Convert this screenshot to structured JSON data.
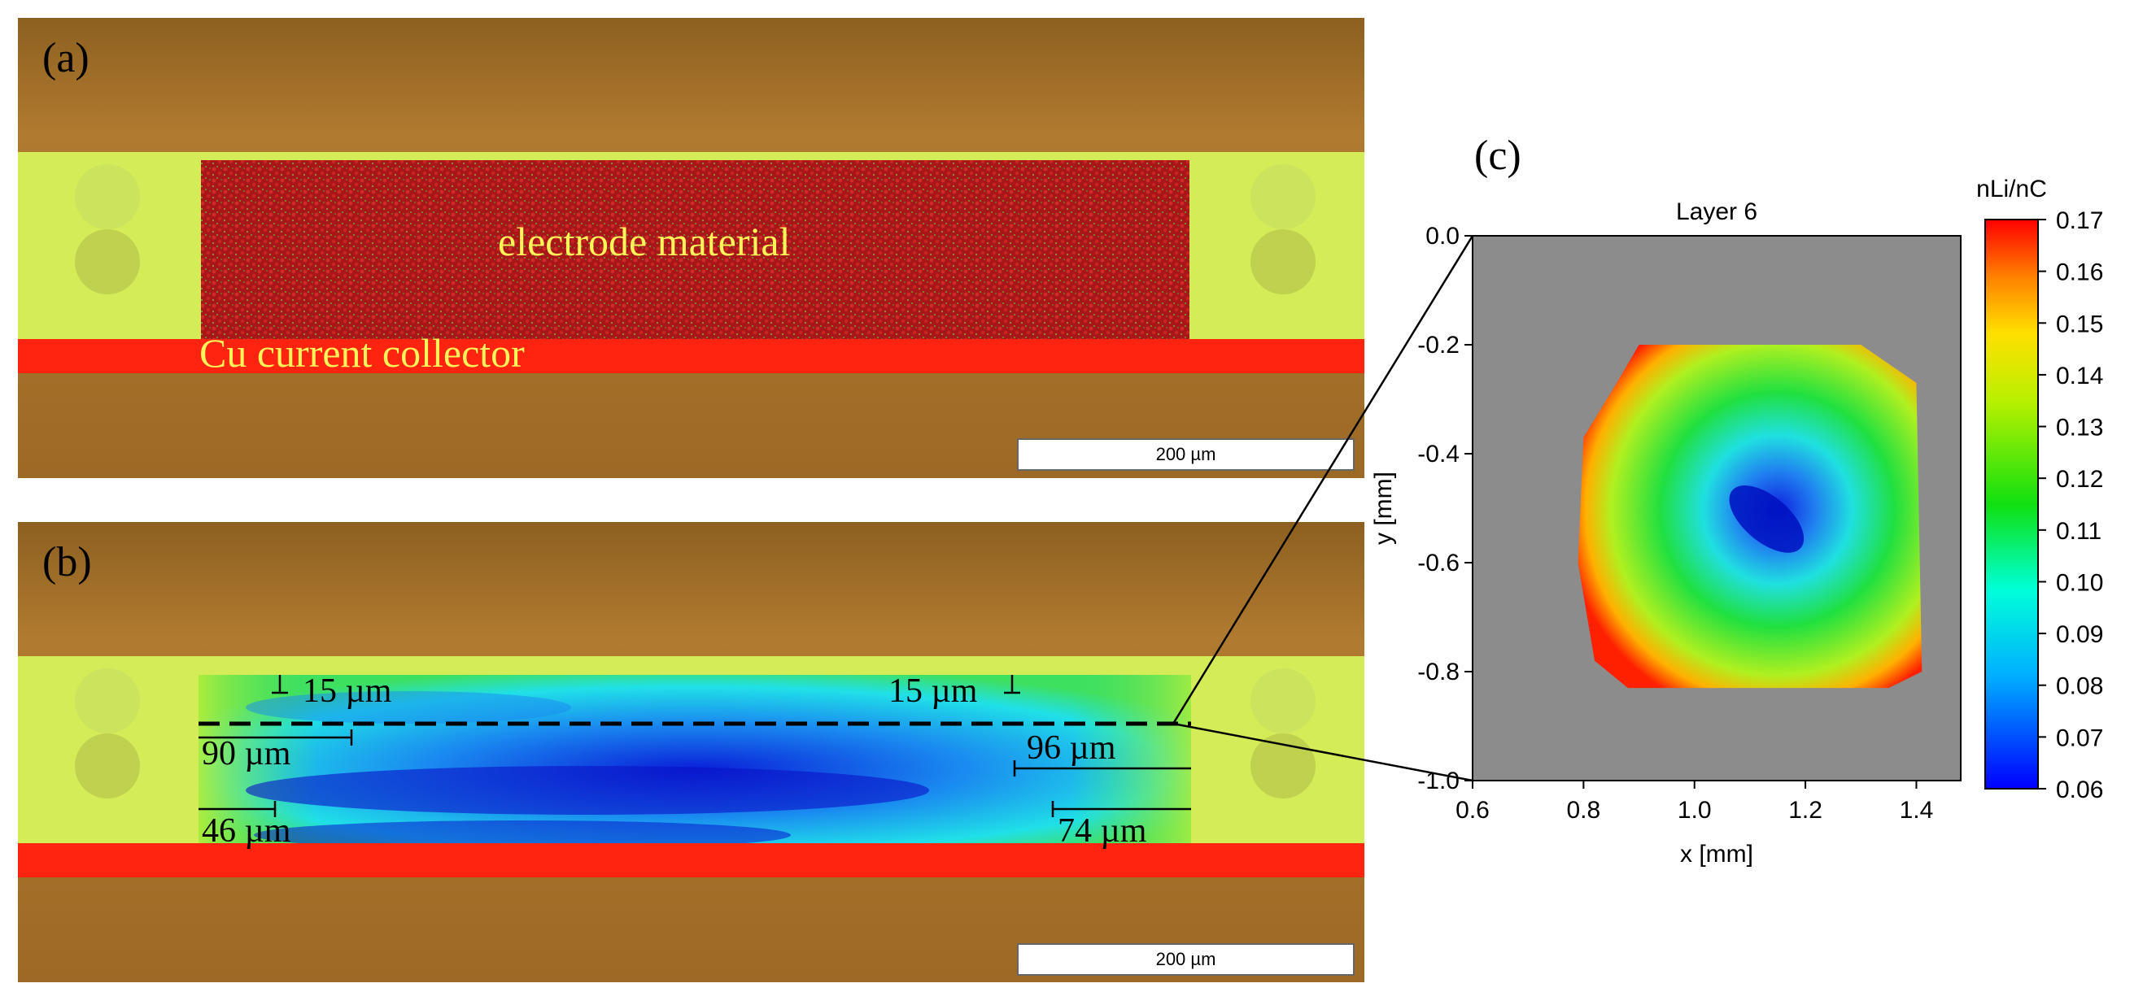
{
  "figure": {
    "panel_a": {
      "label": "(a)",
      "electrode_label": "electrode material",
      "collector_label": "Cu current collector",
      "scale_bar": "200 µm"
    },
    "panel_b": {
      "label": "(b)",
      "scale_bar": "200 µm",
      "measurements": {
        "top_left": "15 µm",
        "top_right": "15 µm",
        "mid_left": "90 µm",
        "mid_right": "96 µm",
        "bottom_left": "46 µm",
        "bottom_right": "74 µm"
      }
    },
    "panel_c": {
      "label": "(c)"
    },
    "colors": {
      "background_brown": "#9a6a2a",
      "separator_yellow": "#d8f060",
      "electrode_red": "#a01818",
      "collector_red": "#ff2a10",
      "text_yellow": "#fff45a",
      "map_gray": "#8c8c8c"
    }
  },
  "chart_data": {
    "type": "heatmap",
    "title": "Layer 6",
    "xlabel": "x [mm]",
    "ylabel": "y [mm]",
    "xlim": [
      0.6,
      1.48
    ],
    "ylim": [
      -1.0,
      0.0
    ],
    "xticks": [
      0.6,
      0.8,
      1.0,
      1.2,
      1.4
    ],
    "yticks": [
      0.0,
      -0.2,
      -0.4,
      -0.6,
      -0.8,
      -1.0
    ],
    "xtick_labels": [
      "0.6",
      "0.8",
      "1.0",
      "1.2",
      "1.4"
    ],
    "ytick_labels": [
      "0.0",
      "-0.2",
      "-0.4",
      "-0.6",
      "-0.8",
      "-1.0"
    ],
    "colorbar": {
      "label": "nLi/nC",
      "min": 0.06,
      "max": 0.17,
      "ticks": [
        0.17,
        0.16,
        0.15,
        0.14,
        0.13,
        0.12,
        0.11,
        0.1,
        0.09,
        0.08,
        0.07,
        0.06
      ],
      "tick_labels": [
        "0.17",
        "0.16",
        "0.15",
        "0.14",
        "0.13",
        "0.12",
        "0.11",
        "0.10",
        "0.09",
        "0.08",
        "0.07",
        "0.06"
      ]
    },
    "sample_outline_mm": [
      [
        0.9,
        -0.2
      ],
      [
        1.3,
        -0.2
      ],
      [
        1.4,
        -0.27
      ],
      [
        1.41,
        -0.8
      ],
      [
        1.35,
        -0.83
      ],
      [
        0.88,
        -0.83
      ],
      [
        0.82,
        -0.78
      ],
      [
        0.79,
        -0.6
      ],
      [
        0.8,
        -0.37
      ],
      [
        0.86,
        -0.27
      ]
    ],
    "minimum_region_mm": {
      "x": 1.13,
      "y": -0.52,
      "value": 0.06
    },
    "edge_value": 0.17
  }
}
